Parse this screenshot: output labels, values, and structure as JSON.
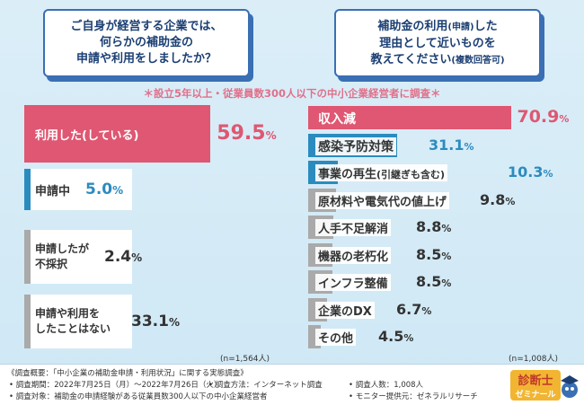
{
  "questions": {
    "left": [
      "ご自身が経営する企業では、",
      "何らかの補助金の",
      "申請や利用をしましたか？"
    ],
    "right_line1": "補助金の利用",
    "right_line1_small": "(申請)",
    "right_line1_end": "した",
    "right_line2": "理由として近いものを",
    "right_line3": "教えてください",
    "right_line3_small": "(複数回答可)"
  },
  "note": "＊設立5年以上・従業員数300人以下の中小企業経営者に調査＊",
  "chart_data": [
    {
      "type": "bar",
      "n_label": "(n=1,564人)",
      "categories": [
        "利用した(している)",
        "申請中",
        "申請したが不採択",
        "申請や利用をしたことはない"
      ],
      "values": [
        59.5,
        5.0,
        2.4,
        33.1
      ],
      "display_values": [
        "59.5",
        "5.0",
        "2.4",
        "33.1"
      ],
      "colors": [
        "#df5772",
        "#2b8bbf",
        "#aaaaaa",
        "#aaaaaa"
      ]
    },
    {
      "type": "bar",
      "n_label": "(n=1,008人)",
      "categories": [
        "収入減",
        "感染予防対策",
        "事業の再生(引継ぎも含む)",
        "原材料や電気代の値上げ",
        "人手不足解消",
        "機器の老朽化",
        "インフラ整備",
        "企業のDX",
        "その他"
      ],
      "values": [
        70.9,
        31.1,
        10.3,
        9.8,
        8.8,
        8.5,
        8.5,
        6.7,
        4.5
      ],
      "display_values": [
        "70.9",
        "31.1",
        "10.3",
        "9.8",
        "8.8",
        "8.5",
        "8.5",
        "6.7",
        "4.5"
      ],
      "colors": [
        "#df5772",
        "#2b8bbf",
        "#2b8bbf",
        "#aaaaaa",
        "#aaaaaa",
        "#aaaaaa",
        "#aaaaaa",
        "#aaaaaa",
        "#aaaaaa"
      ]
    }
  ],
  "pct_sign": "%",
  "footer": {
    "title": "《調査概要：「中小企業の補助金申請・利用状況」に関する実態調査》",
    "period": "• 調査期間：2022年7月25日（月）〜2022年7月26日（火）",
    "method": "• 調査方法：インターネット調査",
    "count": "• 調査人数：1,008人",
    "target": "• 調査対象：補助金の申請経験がある従業員数300人以下の中小企業経営者",
    "provider": "• モニター提供元：ゼネラルリサーチ"
  },
  "logo": {
    "line1": "診断士",
    "line2": "ゼミナール"
  }
}
